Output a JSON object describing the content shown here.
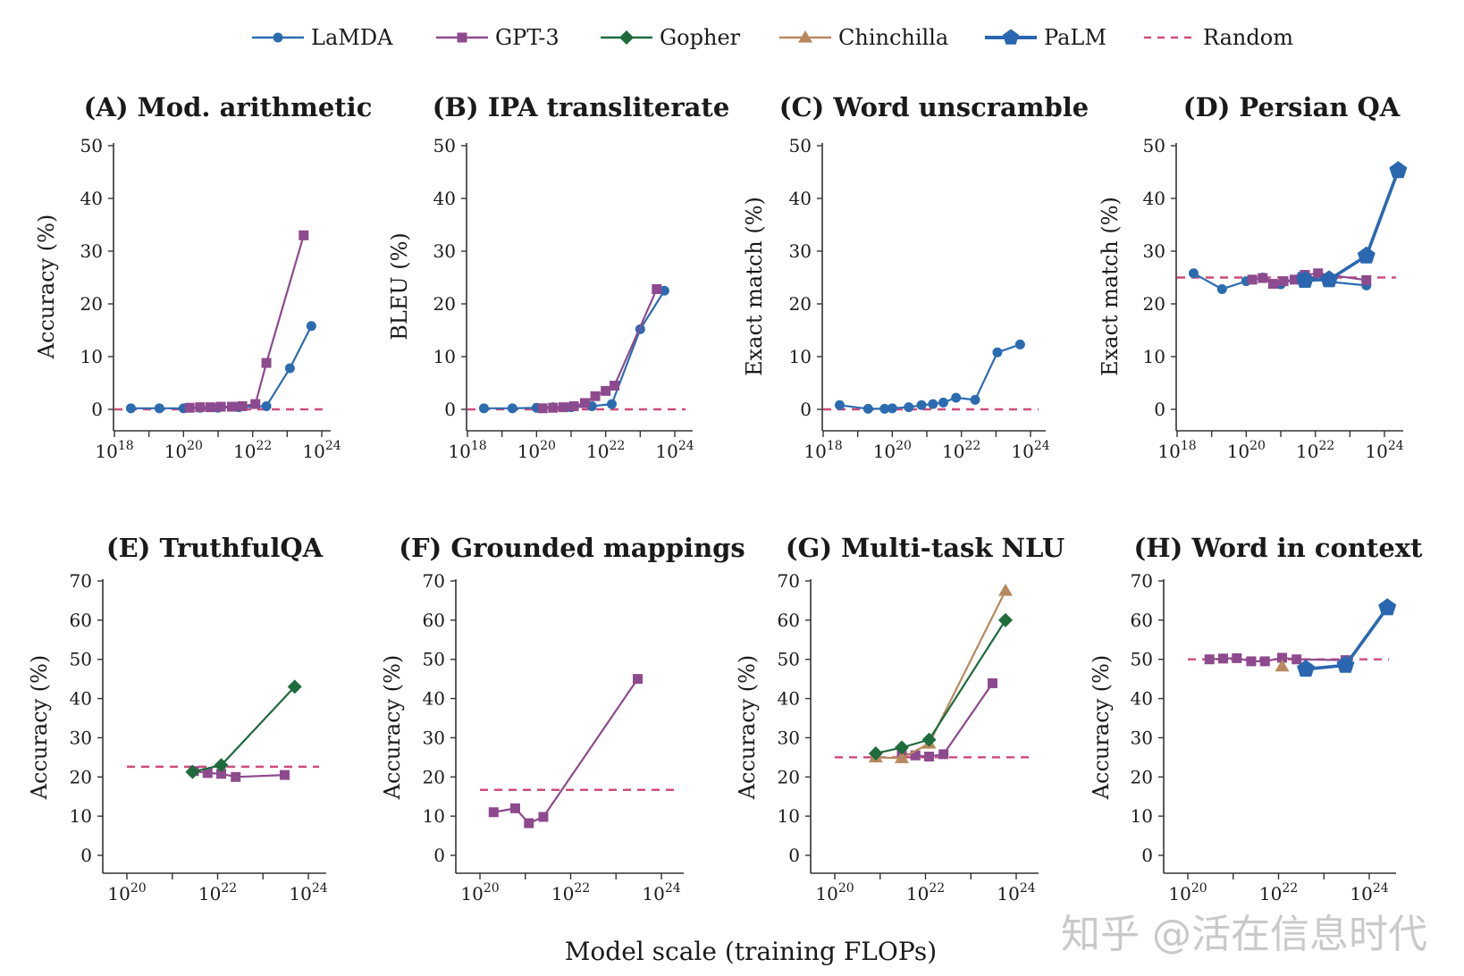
{
  "legend": [
    {
      "name": "LaMDA",
      "color": "#2b6cb0",
      "marker": "circle"
    },
    {
      "name": "GPT-3",
      "color": "#8e4a8e",
      "marker": "square"
    },
    {
      "name": "Gopher",
      "color": "#1e6b3c",
      "marker": "diamond"
    },
    {
      "name": "Chinchilla",
      "color": "#b8895e",
      "marker": "triangle"
    },
    {
      "name": "PaLM",
      "color": "#2a67b0",
      "marker": "pentagon"
    },
    {
      "name": "Random",
      "color": "#d04a7a",
      "marker": "dashed"
    }
  ],
  "xlabel": "Model scale (training FLOPs)",
  "watermark": "知乎 @活在信息时代",
  "chart_data": [
    {
      "type": "line",
      "title": "(A) Mod. arithmetic",
      "ylabel": "Accuracy (%)",
      "xscale": "log",
      "xlim": [
        1e+18,
        1e+24
      ],
      "ylim": [
        0,
        50
      ],
      "yticks": [
        0,
        10,
        20,
        30,
        40,
        50
      ],
      "xticks": [
        {
          "value": 1e+18,
          "label": "10^18"
        },
        {
          "value": 1e+20,
          "label": "10^20"
        },
        {
          "value": 1e+22,
          "label": "10^22"
        },
        {
          "value": 1e+24,
          "label": "10^24"
        }
      ],
      "random": 0,
      "series": [
        {
          "name": "LaMDA",
          "points": [
            [
              3e+18,
              0.2
            ],
            [
              2e+19,
              0.2
            ],
            [
              1e+20,
              0.2
            ],
            [
              3e+20,
              0.3
            ],
            [
              1e+21,
              0.3
            ],
            [
              4e+21,
              0.4
            ],
            [
              2.5e+22,
              0.6
            ],
            [
              1.2e+23,
              7.8
            ],
            [
              5e+23,
              15.8
            ]
          ]
        },
        {
          "name": "GPT-3",
          "points": [
            [
              1.5e+20,
              0.3
            ],
            [
              3e+20,
              0.4
            ],
            [
              6e+20,
              0.4
            ],
            [
              1.2e+21,
              0.5
            ],
            [
              2.5e+21,
              0.5
            ],
            [
              5e+21,
              0.6
            ],
            [
              1.2e+22,
              1.0
            ],
            [
              2.5e+22,
              8.8
            ],
            [
              3e+23,
              33.0
            ]
          ]
        }
      ]
    },
    {
      "type": "line",
      "title": "(B) IPA transliterate",
      "ylabel": "BLEU (%)",
      "xscale": "log",
      "xlim": [
        1e+18,
        1e+24
      ],
      "ylim": [
        0,
        50
      ],
      "yticks": [
        0,
        10,
        20,
        30,
        40,
        50
      ],
      "xticks": [
        {
          "value": 1e+18,
          "label": "10^18"
        },
        {
          "value": 1e+20,
          "label": "10^20"
        },
        {
          "value": 1e+22,
          "label": "10^22"
        },
        {
          "value": 1e+24,
          "label": "10^24"
        }
      ],
      "random": 0,
      "series": [
        {
          "name": "LaMDA",
          "points": [
            [
              3e+18,
              0.2
            ],
            [
              2e+19,
              0.2
            ],
            [
              1e+20,
              0.3
            ],
            [
              3e+20,
              0.4
            ],
            [
              1e+21,
              0.4
            ],
            [
              4e+21,
              0.6
            ],
            [
              1.5e+22,
              1.0
            ],
            [
              1e+23,
              15.2
            ],
            [
              5e+23,
              22.5
            ]
          ]
        },
        {
          "name": "GPT-3",
          "points": [
            [
              1.5e+20,
              0.2
            ],
            [
              3e+20,
              0.3
            ],
            [
              6e+20,
              0.4
            ],
            [
              1.2e+21,
              0.6
            ],
            [
              2.5e+21,
              1.2
            ],
            [
              5e+21,
              2.5
            ],
            [
              1e+22,
              3.5
            ],
            [
              1.8e+22,
              4.5
            ],
            [
              3e+23,
              22.8
            ]
          ]
        }
      ]
    },
    {
      "type": "line",
      "title": "(C) Word unscramble",
      "ylabel": "Exact match (%)",
      "xscale": "log",
      "xlim": [
        1e+18,
        1e+24
      ],
      "ylim": [
        0,
        50
      ],
      "yticks": [
        0,
        10,
        20,
        30,
        40,
        50
      ],
      "xticks": [
        {
          "value": 1e+18,
          "label": "10^18"
        },
        {
          "value": 1e+20,
          "label": "10^20"
        },
        {
          "value": 1e+22,
          "label": "10^22"
        },
        {
          "value": 1e+24,
          "label": "10^24"
        }
      ],
      "random": 0,
      "series": [
        {
          "name": "LaMDA",
          "points": [
            [
              3e+18,
              0.8
            ],
            [
              2e+19,
              0.1
            ],
            [
              6e+19,
              0.1
            ],
            [
              1e+20,
              0.2
            ],
            [
              3e+20,
              0.4
            ],
            [
              7e+20,
              0.8
            ],
            [
              1.5e+21,
              1.0
            ],
            [
              3e+21,
              1.3
            ],
            [
              7e+21,
              2.2
            ],
            [
              2.5e+22,
              1.8
            ],
            [
              1.1e+23,
              10.8
            ],
            [
              5e+23,
              12.3
            ]
          ]
        }
      ]
    },
    {
      "type": "line",
      "title": "(D) Persian QA",
      "ylabel": "Exact match (%)",
      "xscale": "log",
      "xlim": [
        1e+18,
        1e+24
      ],
      "ylim": [
        0,
        50
      ],
      "yticks": [
        0,
        10,
        20,
        30,
        40,
        50
      ],
      "xticks": [
        {
          "value": 1e+18,
          "label": "10^18"
        },
        {
          "value": 1e+20,
          "label": "10^20"
        },
        {
          "value": 1e+22,
          "label": "10^22"
        },
        {
          "value": 1e+24,
          "label": "10^24"
        }
      ],
      "random": 25,
      "series": [
        {
          "name": "LaMDA",
          "points": [
            [
              3e+18,
              25.8
            ],
            [
              2e+19,
              22.8
            ],
            [
              1e+20,
              24.3
            ],
            [
              3e+20,
              25.0
            ],
            [
              1e+21,
              23.7
            ],
            [
              4e+21,
              25.3
            ],
            [
              2.5e+22,
              24.2
            ],
            [
              3e+23,
              23.5
            ]
          ]
        },
        {
          "name": "GPT-3",
          "points": [
            [
              1.5e+20,
              24.6
            ],
            [
              3e+20,
              24.9
            ],
            [
              6e+20,
              23.8
            ],
            [
              1.2e+21,
              24.3
            ],
            [
              2.5e+21,
              24.6
            ],
            [
              5e+21,
              25.5
            ],
            [
              1.2e+22,
              25.8
            ],
            [
              3e+23,
              24.5
            ]
          ]
        },
        {
          "name": "PaLM",
          "points": [
            [
              5e+21,
              24.5
            ],
            [
              2.5e+22,
              24.6
            ],
            [
              3e+23,
              29.1
            ],
            [
              2.5e+24,
              45.3
            ]
          ]
        }
      ]
    },
    {
      "type": "line",
      "title": "(E) TruthfulQA",
      "ylabel": "Accuracy (%)",
      "xscale": "log",
      "xlim": [
        1e+20,
        1e+24
      ],
      "ylim": [
        0,
        70
      ],
      "yticks": [
        0,
        10,
        20,
        30,
        40,
        50,
        60,
        70
      ],
      "xticks": [
        {
          "value": 1e+20,
          "label": "10^20"
        },
        {
          "value": 1e+22,
          "label": "10^22"
        },
        {
          "value": 1e+24,
          "label": "10^24"
        }
      ],
      "random": 22.6,
      "series": [
        {
          "name": "GPT-3",
          "points": [
            [
              3e+21,
              21.5
            ],
            [
              6e+21,
              21.0
            ],
            [
              1.2e+22,
              20.8
            ],
            [
              2.5e+22,
              20.0
            ],
            [
              3e+23,
              20.5
            ]
          ]
        },
        {
          "name": "Gopher",
          "points": [
            [
              2.8e+21,
              21.3
            ],
            [
              1.2e+22,
              23.0
            ],
            [
              5e+23,
              43.0
            ]
          ]
        }
      ]
    },
    {
      "type": "line",
      "title": "(F) Grounded mappings",
      "ylabel": "Accuracy (%)",
      "xscale": "log",
      "xlim": [
        1e+20,
        1e+24
      ],
      "ylim": [
        0,
        70
      ],
      "yticks": [
        0,
        10,
        20,
        30,
        40,
        50,
        60,
        70
      ],
      "xticks": [
        {
          "value": 1e+20,
          "label": "10^20"
        },
        {
          "value": 1e+22,
          "label": "10^22"
        },
        {
          "value": 1e+24,
          "label": "10^24"
        }
      ],
      "random": 16.7,
      "series": [
        {
          "name": "GPT-3",
          "points": [
            [
              2e+20,
              11.0
            ],
            [
              6e+20,
              12.0
            ],
            [
              1.2e+21,
              8.2
            ],
            [
              2.5e+21,
              9.8
            ],
            [
              3e+23,
              45.0
            ]
          ]
        }
      ]
    },
    {
      "type": "line",
      "title": "(G) Multi-task NLU",
      "ylabel": "Accuracy (%)",
      "xscale": "log",
      "xlim": [
        1e+20,
        1e+24
      ],
      "ylim": [
        0,
        70
      ],
      "yticks": [
        0,
        10,
        20,
        30,
        40,
        50,
        60,
        70
      ],
      "xticks": [
        {
          "value": 1e+20,
          "label": "10^20"
        },
        {
          "value": 1e+22,
          "label": "10^22"
        },
        {
          "value": 1e+24,
          "label": "10^24"
        }
      ],
      "random": 25,
      "series": [
        {
          "name": "GPT-3",
          "points": [
            [
              3e+21,
              26.0
            ],
            [
              6e+21,
              25.5
            ],
            [
              1.2e+22,
              25.2
            ],
            [
              2.5e+22,
              25.8
            ],
            [
              3e+23,
              43.9
            ]
          ]
        },
        {
          "name": "Chinchilla",
          "points": [
            [
              8e+20,
              25.0
            ],
            [
              3e+21,
              24.8
            ],
            [
              1.2e+22,
              28.5
            ],
            [
              5.8e+23,
              67.5
            ]
          ]
        },
        {
          "name": "Gopher",
          "points": [
            [
              8e+20,
              26.0
            ],
            [
              3e+21,
              27.5
            ],
            [
              1.2e+22,
              29.5
            ],
            [
              5.8e+23,
              60.0
            ]
          ]
        }
      ]
    },
    {
      "type": "line",
      "title": "(H) Word in context",
      "ylabel": "Accuracy (%)",
      "xscale": "log",
      "xlim": [
        1e+20,
        1e+24
      ],
      "ylim": [
        0,
        70
      ],
      "yticks": [
        0,
        10,
        20,
        30,
        40,
        50,
        60,
        70
      ],
      "xticks": [
        {
          "value": 1e+20,
          "label": "10^20"
        },
        {
          "value": 1e+22,
          "label": "10^22"
        },
        {
          "value": 1e+24,
          "label": "10^24"
        }
      ],
      "random": 50,
      "series": [
        {
          "name": "GPT-3",
          "points": [
            [
              3e+20,
              50.0
            ],
            [
              6e+20,
              50.2
            ],
            [
              1.2e+21,
              50.3
            ],
            [
              2.5e+21,
              49.5
            ],
            [
              5e+21,
              49.5
            ],
            [
              1.2e+22,
              50.4
            ],
            [
              2.5e+22,
              50.0
            ],
            [
              3e+23,
              49.8
            ]
          ]
        },
        {
          "name": "Chinchilla",
          "points": [
            [
              1.2e+22,
              48.2
            ]
          ]
        },
        {
          "name": "PaLM",
          "points": [
            [
              4e+22,
              47.5
            ],
            [
              3e+23,
              48.5
            ],
            [
              2.5e+24,
              63.2
            ]
          ]
        }
      ]
    }
  ]
}
